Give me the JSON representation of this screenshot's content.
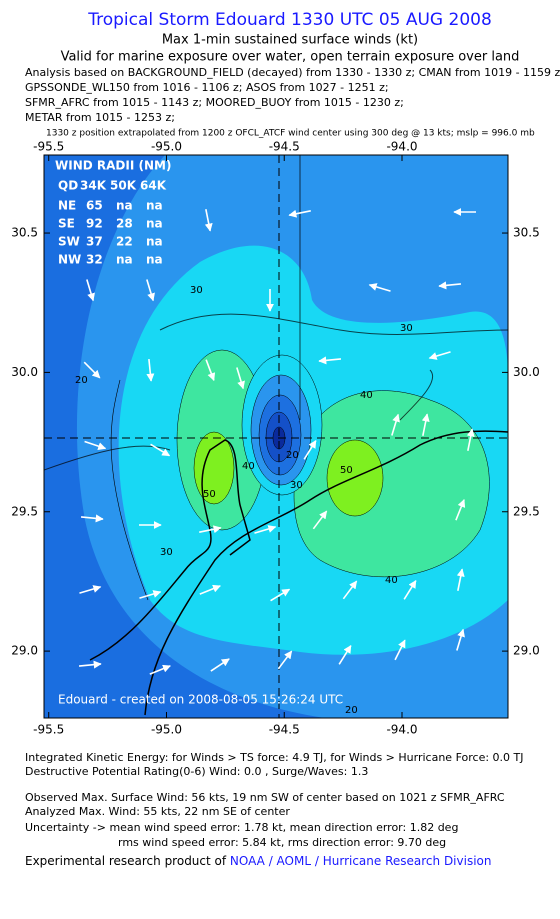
{
  "header": {
    "title": "Tropical Storm Edouard 1330 UTC 05 AUG 2008",
    "subtitle": "Max 1-min sustained surface winds (kt)",
    "validity": "Valid for marine exposure over water, open terrain exposure over land",
    "sources": [
      "Analysis based on  BACKGROUND_FIELD (decayed) from 1330 - 1330 z;  CMAN from 1019 - 1159 z;",
      "GPSSONDE_WL150 from 1016 - 1106 z;  ASOS from 1027 - 1251 z;",
      "SFMR_AFRC from 1015 - 1143 z;  MOORED_BUOY from 1015 - 1230 z;",
      "METAR from 1015 - 1253 z;"
    ],
    "position_note": "1330 z position extrapolated from 1200 z OFCL_ATCF wind center using 300 deg @ 13 kts; mslp = 996.0 mb"
  },
  "chart_data": {
    "type": "contour-map",
    "xlim": [
      -95.52,
      -93.55
    ],
    "ylim": [
      28.76,
      30.78
    ],
    "xticks": [
      -95.5,
      {
        "value": -95.0,
        "label": "-95.0"
      },
      -94.5,
      {
        "value": -94.0,
        "label": "-94.0"
      }
    ],
    "yticks": [
      {
        "value": 29.0,
        "label": "29.0"
      },
      29.5,
      {
        "value": 30.0,
        "label": "30.0"
      },
      30.5
    ],
    "contour_labels": [
      "20",
      "30",
      "30",
      "30",
      "40",
      "40",
      "40",
      "50",
      "50",
      "20",
      "30",
      "20"
    ]
  },
  "wind_radii": {
    "title": "WIND RADII (NM)",
    "header": [
      "QD",
      "34K",
      "50K",
      "64K"
    ],
    "rows": [
      [
        "NE",
        "65",
        "na",
        "na"
      ],
      [
        "SE",
        "92",
        "28",
        "na"
      ],
      [
        "SW",
        "37",
        "22",
        "na"
      ],
      [
        "NW",
        "32",
        "na",
        "na"
      ]
    ]
  },
  "watermark": "Edouard - created on 2008-08-05 15:26:24 UTC",
  "footer": {
    "lines": [
      "Integrated Kinetic Energy:  for Winds > TS force: 4.9 TJ,  for Winds > Hurricane Force: 0.0 TJ",
      "Destructive Potential Rating(0-6)   Wind: 0.0 , Surge/Waves: 1.3",
      "Observed Max. Surface Wind: 56 kts, 19 nm SW of center based on 1021 z SFMR_AFRC",
      "Analyzed Max. Wind: 55 kts, 22 nm SE of center",
      "Uncertainty -> mean wind speed error: 1.78 kt,    mean direction error: 1.82 deg",
      "rms wind speed error: 5.84 kt,   rms direction error: 9.70 deg"
    ],
    "credit_prefix": "Experimental research product of ",
    "credit_org": "NOAA / AOML / Hurricane Research Division"
  }
}
